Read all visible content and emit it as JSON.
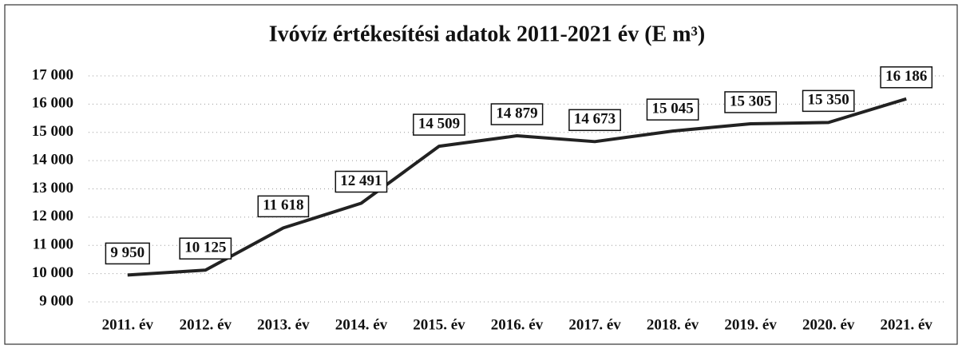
{
  "chart_data": {
    "type": "line",
    "title": "Ivóvíz értékesítési adatok 2011-2021 év (E m³)",
    "categories": [
      "2011. év",
      "2012. év",
      "2013. év",
      "2014. év",
      "2015. év",
      "2016. év",
      "2017. év",
      "2018. év",
      "2019. év",
      "2020. év",
      "2021. év"
    ],
    "values": [
      9950,
      10125,
      11618,
      12491,
      14509,
      14879,
      14673,
      15045,
      15305,
      15350,
      16186
    ],
    "value_labels": [
      "9 950",
      "10 125",
      "11 618",
      "12 491",
      "14 509",
      "14 879",
      "14 673",
      "15 045",
      "15 305",
      "15 350",
      "16 186"
    ],
    "color": "#222222",
    "ylim": [
      9000,
      17000
    ],
    "yticks": [
      {
        "value": 9000,
        "label": "9 000"
      },
      {
        "value": 10000,
        "label": "10 000"
      },
      {
        "value": 11000,
        "label": "11 000"
      },
      {
        "value": 12000,
        "label": "12 000"
      },
      {
        "value": 13000,
        "label": "13 000"
      },
      {
        "value": 14000,
        "label": "14 000"
      },
      {
        "value": 15000,
        "label": "15 000"
      },
      {
        "value": 16000,
        "label": "16 000"
      },
      {
        "value": 17000,
        "label": "17 000"
      }
    ],
    "grid": true
  }
}
